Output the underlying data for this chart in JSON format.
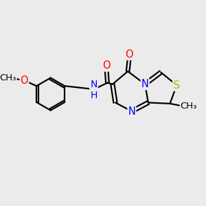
{
  "bg_color": "#ebebeb",
  "atom_colors": {
    "C": "#000000",
    "N": "#0000ff",
    "O": "#ff0000",
    "S": "#b8b800",
    "H": "#000000"
  },
  "bond_color": "#000000",
  "bond_width": 1.6,
  "font_size": 10.5,
  "figsize": [
    3.0,
    3.0
  ],
  "dpi": 100
}
